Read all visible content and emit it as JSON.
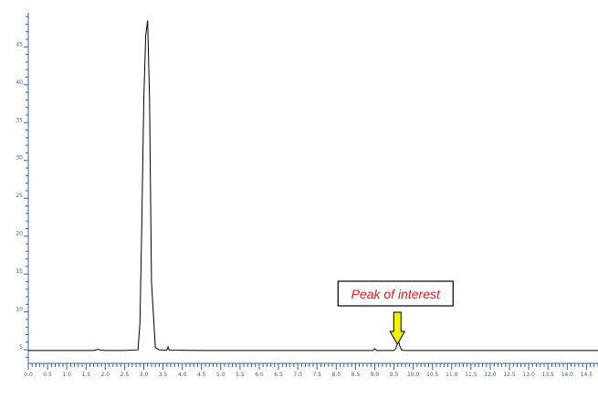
{
  "chart_data": {
    "type": "line",
    "title": "",
    "xlabel": "",
    "ylabel": "",
    "xlim": [
      0,
      14.8
    ],
    "ylim": [
      3.2,
      49.5
    ],
    "grid": false,
    "legend": "none",
    "x_ticks": [
      "0.0",
      "0.5",
      "1.0",
      "1.5",
      "2.0",
      "2.5",
      "3.0",
      "3.5",
      "4.0",
      "4.5",
      "5.0",
      "5.5",
      "6.0",
      "6.5",
      "7.0",
      "7.5",
      "8.0",
      "8.5",
      "9.0",
      "9.5",
      "10.0",
      "10.5",
      "11.0",
      "11.5",
      "12.0",
      "12.5",
      "13.0",
      "13.5",
      "14.0",
      "14.5"
    ],
    "y_ticks": [
      "5",
      "10",
      "15",
      "20",
      "25",
      "30",
      "35",
      "40",
      "45"
    ],
    "series": [
      {
        "x": [
          0.0,
          1.7,
          1.8,
          1.9,
          2.0,
          2.5,
          2.85,
          2.9,
          2.95,
          3.0,
          3.05,
          3.1,
          3.15,
          3.2,
          3.3,
          3.4,
          3.6,
          3.63,
          3.66,
          4.5,
          5.5,
          6.5,
          7.5,
          8.5,
          8.95,
          9.0,
          9.05,
          9.5,
          9.55,
          9.6,
          9.62,
          9.65,
          9.7,
          9.8,
          10.5,
          11.5,
          12.5,
          13.5,
          14.8
        ],
        "y": [
          4.9,
          4.9,
          5.05,
          4.95,
          4.9,
          4.9,
          5.0,
          8.5,
          22.0,
          38.0,
          46.5,
          48.5,
          38.0,
          14.0,
          5.3,
          5.0,
          4.95,
          5.4,
          4.95,
          4.9,
          4.9,
          4.9,
          4.9,
          4.9,
          4.9,
          5.15,
          4.9,
          4.9,
          5.2,
          6.0,
          6.2,
          5.5,
          4.95,
          4.9,
          4.9,
          4.9,
          4.9,
          4.9,
          4.9
        ]
      }
    ],
    "annotation": {
      "text": "Peak of interest",
      "x": 9.6,
      "arrow_color": "#f4f200",
      "text_color": "#e0191b"
    },
    "colors": {
      "line": "#000000",
      "axis": "#3a5fa8"
    }
  }
}
